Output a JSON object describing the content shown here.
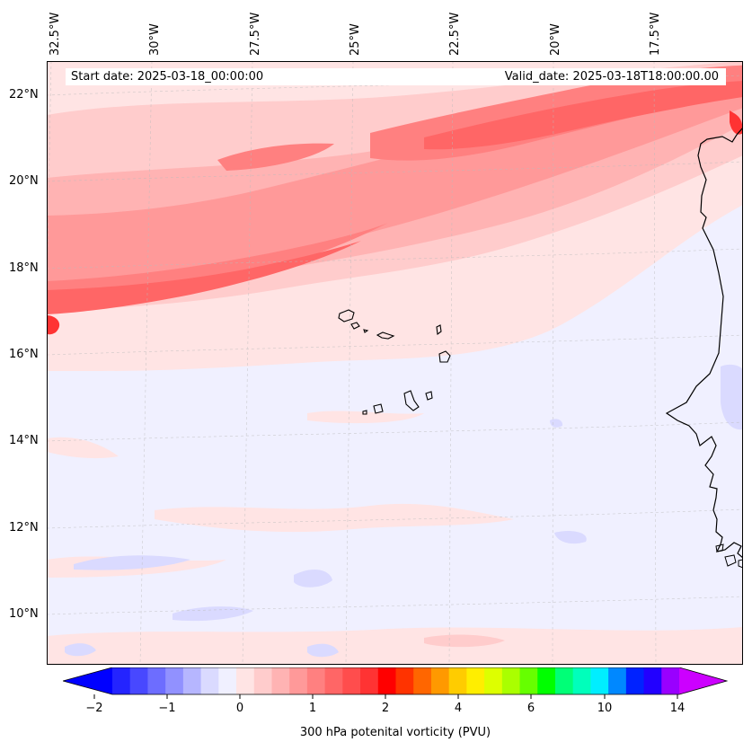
{
  "map": {
    "lon_labels": [
      "32.5°W",
      "30°W",
      "27.5°W",
      "25°W",
      "22.5°W",
      "20°W",
      "17.5°W"
    ],
    "lat_labels": [
      "22°N",
      "20°N",
      "18°N",
      "16°N",
      "14°N",
      "12°N",
      "10°N"
    ],
    "start_date_text": "Start date: 2025-03-18_00:00:00",
    "valid_date_text": "Valid_date: 2025-03-18T18:00:00.00",
    "field": "300 hPa potenital vorticity (PVU)",
    "background_color": "#f0f0ff",
    "coastline_color": "#000000",
    "islands": [
      "Santo Antão",
      "São Vicente",
      "Santa Luzia",
      "São Nicolau",
      "Sal",
      "Boa Vista",
      "Maio",
      "Santiago",
      "Fogo",
      "Brava"
    ]
  },
  "colorbar": {
    "label": "300 hPa potenital vorticity (PVU)",
    "tick_labels": [
      "−2",
      "−1",
      "0",
      "1",
      "2",
      "4",
      "6",
      "10",
      "14"
    ],
    "levels": [
      -2,
      -1.75,
      -1.5,
      -1.25,
      -1,
      -0.75,
      -0.5,
      -0.25,
      0,
      0.25,
      0.5,
      0.75,
      1,
      1.25,
      1.5,
      1.75,
      2,
      2.5,
      3,
      3.5,
      4,
      4.5,
      5,
      5.5,
      6,
      7,
      8,
      9,
      10,
      11,
      12,
      13,
      14
    ],
    "colors": [
      "#0000ff",
      "#2424ff",
      "#4848ff",
      "#6d6dff",
      "#9191ff",
      "#b6b6ff",
      "#dadaff",
      "#f0f0ff",
      "#ffe4e4",
      "#ffcccc",
      "#ffb3b3",
      "#ff9999",
      "#ff8080",
      "#ff6666",
      "#ff4d4d",
      "#ff3333",
      "#ff0000",
      "#ff3300",
      "#ff6600",
      "#ff9900",
      "#ffcc00",
      "#ffee00",
      "#ddff00",
      "#aaff00",
      "#66ff00",
      "#00ff00",
      "#00ff77",
      "#00ffbb",
      "#00eeff",
      "#0088ff",
      "#0022ff",
      "#2200ff",
      "#9900ff",
      "#cc00ff"
    ],
    "extend_min_color": "#0000ff",
    "extend_max_color": "#cc00ff"
  }
}
